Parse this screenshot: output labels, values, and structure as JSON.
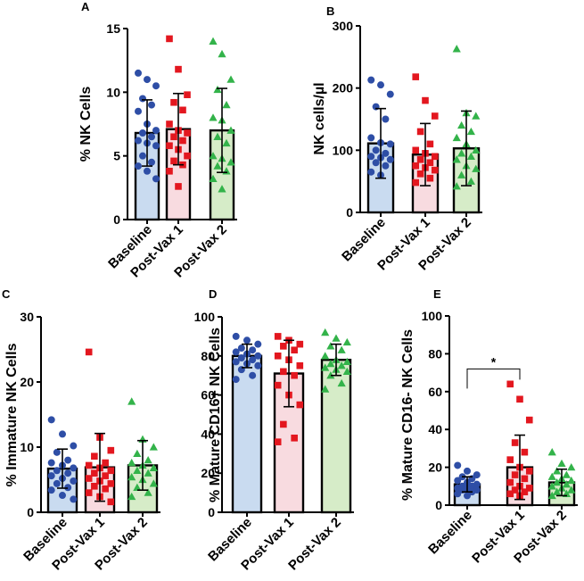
{
  "colors": {
    "baseline": "#2e4ea6",
    "postvax1": "#e3171f",
    "postvax2": "#33b34a",
    "fill_baseline": "#c9dbf0",
    "fill_postvax1": "#f8dbe0",
    "fill_postvax2": "#d6ecc8"
  },
  "chart_data": [
    {
      "panel": "A",
      "type": "bar",
      "ylabel": "% NK Cells",
      "ylim": [
        0,
        15
      ],
      "yticks": [
        0,
        5,
        10,
        15
      ],
      "categories": [
        "Baseline",
        "Post-Vax 1",
        "Post-Vax 2"
      ],
      "means": [
        6.8,
        7.1,
        7.0
      ],
      "sd": [
        2.6,
        2.8,
        3.3
      ],
      "points": [
        [
          11.5,
          11.0,
          10.5,
          9.5,
          9.0,
          8.5,
          7.5,
          7.0,
          6.8,
          6.5,
          6.2,
          6.0,
          5.8,
          5.0,
          4.5,
          4.2,
          3.8,
          3.2
        ],
        [
          14.2,
          11.8,
          9.8,
          9.2,
          8.6,
          7.5,
          7.0,
          6.8,
          6.5,
          6.2,
          5.8,
          5.5,
          5.0,
          4.6,
          4.3,
          3.8,
          2.6
        ],
        [
          14.0,
          13.0,
          11.0,
          10.2,
          9.0,
          8.0,
          7.8,
          7.0,
          6.5,
          6.0,
          5.0,
          4.8,
          4.5,
          4.2,
          3.8,
          3.2,
          2.4
        ]
      ]
    },
    {
      "panel": "B",
      "type": "bar",
      "ylabel": "NK cells/µl",
      "ylim": [
        0,
        300
      ],
      "yticks": [
        0,
        100,
        200,
        300
      ],
      "categories": [
        "Baseline",
        "Post-Vax 1",
        "Post-Vax 2"
      ],
      "means": [
        111,
        93,
        103
      ],
      "sd": [
        56,
        50,
        60
      ],
      "points": [
        [
          213,
          205,
          190,
          170,
          150,
          120,
          112,
          110,
          100,
          95,
          90,
          88,
          85,
          80,
          75,
          65,
          60
        ],
        [
          218,
          180,
          155,
          130,
          110,
          100,
          95,
          90,
          85,
          80,
          75,
          72,
          68,
          62,
          55,
          48
        ],
        [
          263,
          160,
          155,
          140,
          130,
          120,
          110,
          100,
          95,
          90,
          85,
          75,
          70,
          60,
          50,
          42
        ]
      ]
    },
    {
      "panel": "C",
      "type": "bar",
      "ylabel": "% Immature NK Cells",
      "ylim": [
        0,
        30
      ],
      "yticks": [
        0,
        10,
        20,
        30
      ],
      "categories": [
        "Baseline",
        "Post-Vax 1",
        "Post-Vax 2"
      ],
      "means": [
        6.7,
        6.9,
        7.2
      ],
      "sd": [
        3.0,
        5.2,
        3.8
      ],
      "points": [
        [
          14.2,
          12.0,
          10.2,
          9.2,
          8.0,
          7.6,
          7.2,
          6.8,
          6.4,
          6.0,
          5.6,
          5.2,
          4.8,
          4.4,
          3.8,
          3.4,
          2.6,
          2.0
        ],
        [
          24.6,
          11.5,
          9.5,
          8.6,
          7.6,
          7.2,
          6.8,
          6.4,
          6.0,
          5.6,
          5.2,
          4.8,
          4.4,
          4.0,
          3.6,
          3.0,
          2.4,
          1.6
        ],
        [
          17.0,
          11.2,
          10.0,
          9.0,
          8.0,
          7.6,
          7.2,
          6.8,
          6.4,
          6.0,
          5.4,
          5.0,
          4.4,
          3.8,
          3.0,
          2.4
        ]
      ]
    },
    {
      "panel": "D",
      "type": "bar",
      "ylabel": "% Mature CD16+ NK Cells",
      "ylim": [
        0,
        100
      ],
      "yticks": [
        0,
        20,
        40,
        60,
        80,
        100
      ],
      "categories": [
        "Baseline",
        "Post-Vax 1",
        "Post-Vax 2"
      ],
      "means": [
        80,
        71,
        78
      ],
      "sd": [
        6,
        17,
        8
      ],
      "points": [
        [
          90,
          88,
          86,
          84,
          83,
          82,
          81,
          80,
          79,
          78,
          77,
          76,
          75,
          73,
          70,
          68
        ],
        [
          90,
          88,
          86,
          85,
          83,
          80,
          78,
          75,
          72,
          70,
          65,
          60,
          55,
          45,
          38,
          36
        ],
        [
          92,
          89,
          87,
          85,
          83,
          80,
          78,
          77,
          76,
          75,
          74,
          73,
          72,
          70,
          66,
          63
        ]
      ]
    },
    {
      "panel": "E",
      "type": "bar",
      "ylabel": "% Mature CD16- NK Cells",
      "ylim": [
        0,
        100
      ],
      "yticks": [
        0,
        20,
        40,
        60,
        80,
        100
      ],
      "categories": [
        "Baseline",
        "Post-Vax 1",
        "Post-Vax 2"
      ],
      "means": [
        11,
        20,
        12
      ],
      "sd": [
        4,
        17,
        7
      ],
      "points": [
        [
          21,
          18,
          16,
          15,
          14,
          13,
          12,
          11,
          10,
          10,
          9,
          9,
          8,
          8,
          7,
          6,
          5
        ],
        [
          64,
          56,
          45,
          33,
          28,
          24,
          20,
          18,
          16,
          14,
          12,
          10,
          9,
          8,
          7,
          6,
          5
        ],
        [
          28,
          22,
          20,
          18,
          16,
          15,
          14,
          13,
          12,
          11,
          10,
          9,
          8,
          7,
          6,
          5
        ]
      ],
      "annotation": {
        "label": "*",
        "from": 0,
        "to": 1,
        "y": 72
      }
    }
  ]
}
